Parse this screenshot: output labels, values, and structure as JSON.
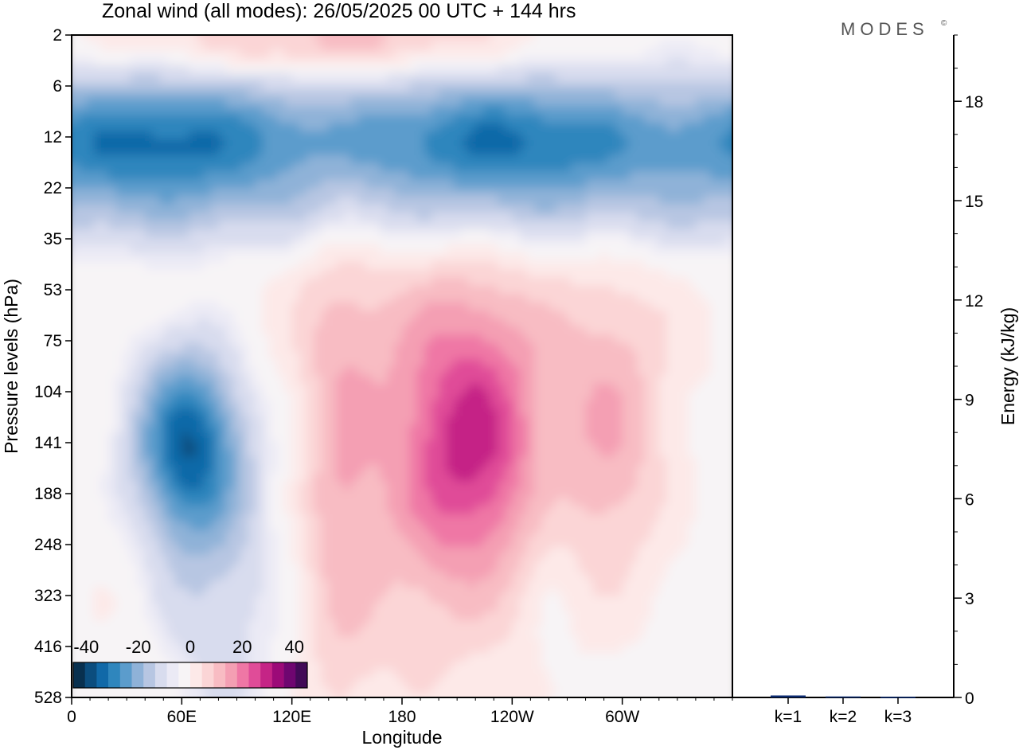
{
  "title": "Zonal wind (all modes):  26/05/2025  00 UTC  + 144 hrs",
  "logo": "MODES",
  "logo_mark": "©",
  "colors": {
    "negative": [
      "#08304f",
      "#0b4d7e",
      "#1169a8",
      "#2f86bd",
      "#5b9ccc",
      "#8fb2d8",
      "#b7c6e2",
      "#d8dcee",
      "#ebeaf5"
    ],
    "neutral": "#f7f4f6",
    "positive": [
      "#fde9e8",
      "#fbd5d6",
      "#f8bcc3",
      "#f49fb3",
      "#ef77a5",
      "#e04c98",
      "#c52486",
      "#9c0a78",
      "#6f0670",
      "#420a57"
    ]
  },
  "chart_data": [
    {
      "type": "heatmap",
      "title": "Zonal wind (all modes):  26/05/2025  00 UTC  + 144 hrs",
      "xlabel": "Longitude",
      "ylabel": "Pressure levels (hPa)",
      "x_ticks": [
        "0",
        "60E",
        "120E",
        "180",
        "120W",
        "60W"
      ],
      "x_range_deg": [
        0,
        360
      ],
      "y_ticks": [
        "2",
        "6",
        "12",
        "22",
        "35",
        "53",
        "75",
        "104",
        "141",
        "188",
        "248",
        "323",
        "416",
        "528"
      ],
      "colorbar": {
        "ticks": [
          "-40",
          "-20",
          "0",
          "20",
          "40"
        ],
        "range": [
          -45,
          45
        ],
        "step": 5
      },
      "features": [
        {
          "name": "upper easterly band",
          "level_range_hPa": [
            6,
            35
          ],
          "value": -30
        },
        {
          "name": "westerly near top",
          "level_range_hPa": [
            2,
            4
          ],
          "value": 15
        },
        {
          "name": "easterly core",
          "lon": 62,
          "level_hPa": 141,
          "value": -30
        },
        {
          "name": "westerly core",
          "lon": 220,
          "level_hPa": 141,
          "value": 25
        },
        {
          "name": "westerly maximum",
          "lon": 295,
          "level_hPa": 141,
          "value": 15
        }
      ]
    },
    {
      "type": "bar",
      "categories": [
        "k=1",
        "k=2",
        "k=3"
      ],
      "values": [
        0.06,
        0.03,
        0.02
      ],
      "ylabel": "Energy (kJ/kg)",
      "y_ticks": [
        "0",
        "3",
        "6",
        "9",
        "12",
        "15",
        "18"
      ],
      "ylim": [
        0,
        20
      ]
    }
  ]
}
